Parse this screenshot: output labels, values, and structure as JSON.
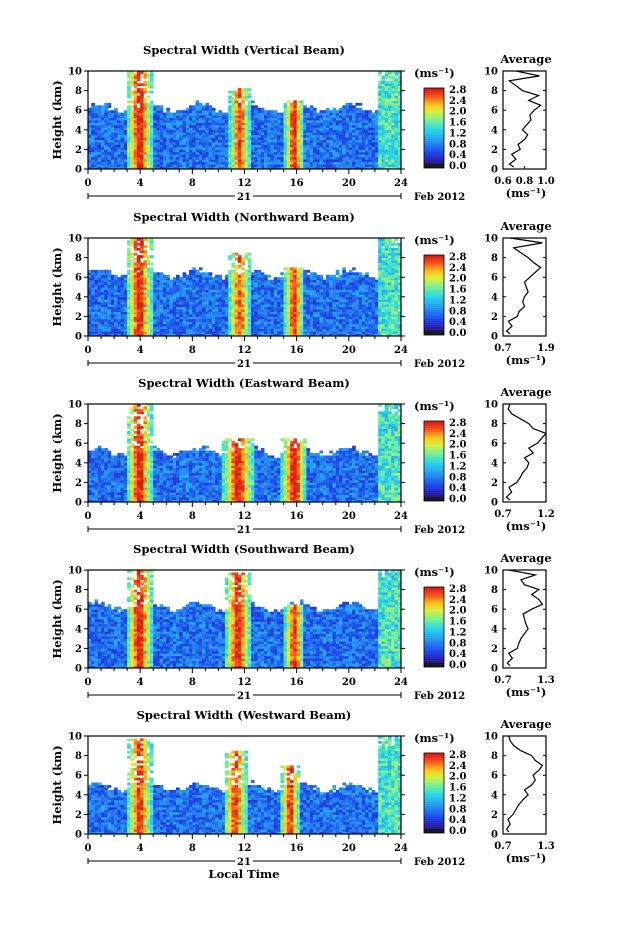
{
  "figure": {
    "colorbar_unit": "(ms⁻¹)",
    "colorbar_ticks": [
      "0.0",
      "0.4",
      "0.8",
      "1.2",
      "1.6",
      "2.0",
      "2.4",
      "2.8"
    ],
    "avg_title": "Average",
    "avg_xlabel": "(ms⁻¹)",
    "date_day_label": "21",
    "date_month_label": "Feb 2012",
    "bottom_xlabel": "Local Time"
  },
  "chart_data": [
    {
      "type": "heatmap",
      "title": "Spectral Width (Vertical Beam)",
      "xlabel": "Local Time",
      "ylabel": "Height (km)",
      "x_ticks": [
        0,
        4,
        8,
        12,
        16,
        20,
        24
      ],
      "y_ticks": [
        0,
        2,
        4,
        6,
        8,
        10
      ],
      "xlim": [
        0,
        24
      ],
      "ylim": [
        0,
        10
      ],
      "colorbar": {
        "label": "(ms⁻¹)",
        "range": [
          0.0,
          2.8
        ]
      },
      "average_profile": {
        "xlim": [
          0.6,
          1.0
        ],
        "x_ticks": [
          "0.6",
          "0.8",
          "1.0"
        ],
        "height": [
          0.2,
          0.5,
          1.0,
          1.5,
          2.0,
          2.5,
          3.0,
          3.5,
          4.0,
          4.5,
          5.0,
          5.5,
          6.0,
          6.5,
          7.0,
          7.5,
          8.0,
          8.5,
          9.0,
          9.5,
          10.0
        ],
        "value": [
          0.7,
          0.66,
          0.72,
          0.68,
          0.76,
          0.74,
          0.8,
          0.83,
          0.78,
          0.82,
          0.86,
          0.85,
          0.89,
          0.95,
          0.84,
          0.93,
          0.78,
          0.72,
          0.66,
          0.94,
          0.72
        ]
      }
    },
    {
      "type": "heatmap",
      "title": "Spectral Width (Northward Beam)",
      "xlabel": "Local Time",
      "ylabel": "Height (km)",
      "x_ticks": [
        0,
        4,
        8,
        12,
        16,
        20,
        24
      ],
      "y_ticks": [
        0,
        2,
        4,
        6,
        8,
        10
      ],
      "xlim": [
        0,
        24
      ],
      "ylim": [
        0,
        10
      ],
      "colorbar": {
        "label": "(ms⁻¹)",
        "range": [
          0.0,
          2.8
        ]
      },
      "average_profile": {
        "xlim": [
          0.7,
          1.9
        ],
        "x_ticks": [
          "0.7",
          "1.9"
        ],
        "height": [
          0.2,
          0.5,
          1.0,
          1.5,
          2.0,
          2.5,
          3.0,
          3.5,
          4.0,
          4.5,
          5.0,
          5.5,
          6.0,
          6.5,
          7.0,
          7.5,
          8.0,
          8.5,
          9.0,
          9.5,
          10.0
        ],
        "value": [
          0.9,
          0.8,
          0.95,
          0.85,
          1.1,
          1.15,
          1.3,
          1.25,
          1.3,
          1.4,
          1.35,
          1.3,
          1.45,
          1.6,
          1.75,
          1.55,
          1.4,
          1.2,
          1.0,
          1.8,
          0.9
        ]
      }
    },
    {
      "type": "heatmap",
      "title": "Spectral Width (Eastward Beam)",
      "xlabel": "Local Time",
      "ylabel": "Height (km)",
      "x_ticks": [
        0,
        4,
        8,
        12,
        16,
        20,
        24
      ],
      "y_ticks": [
        0,
        2,
        4,
        6,
        8,
        10
      ],
      "xlim": [
        0,
        24
      ],
      "ylim": [
        0,
        10
      ],
      "colorbar": {
        "label": "(ms⁻¹)",
        "range": [
          0.0,
          2.8
        ]
      },
      "average_profile": {
        "xlim": [
          0.7,
          1.2
        ],
        "x_ticks": [
          "0.7",
          "1.2"
        ],
        "height": [
          0.2,
          0.5,
          1.0,
          1.5,
          2.0,
          2.5,
          3.0,
          3.5,
          4.0,
          4.5,
          5.0,
          5.5,
          6.0,
          6.5,
          7.0,
          7.5,
          8.0,
          8.5,
          9.0,
          9.5,
          10.0
        ],
        "value": [
          0.78,
          0.74,
          0.8,
          0.77,
          0.86,
          0.9,
          0.93,
          0.98,
          1.0,
          0.95,
          1.05,
          1.0,
          1.1,
          1.15,
          1.2,
          1.05,
          1.0,
          0.9,
          0.8,
          0.76,
          0.78
        ]
      }
    },
    {
      "type": "heatmap",
      "title": "Spectral Width (Southward Beam)",
      "xlabel": "Local Time",
      "ylabel": "Height (km)",
      "x_ticks": [
        0,
        4,
        8,
        12,
        16,
        20,
        24
      ],
      "y_ticks": [
        0,
        2,
        4,
        6,
        8,
        10
      ],
      "xlim": [
        0,
        24
      ],
      "ylim": [
        0,
        10
      ],
      "colorbar": {
        "label": "(ms⁻¹)",
        "range": [
          0.0,
          2.8
        ]
      },
      "average_profile": {
        "xlim": [
          0.7,
          1.3
        ],
        "x_ticks": [
          "0.7",
          "1.3"
        ],
        "height": [
          0.2,
          0.5,
          1.0,
          1.5,
          2.0,
          2.5,
          3.0,
          3.5,
          4.0,
          4.5,
          5.0,
          5.5,
          6.0,
          6.5,
          7.0,
          7.5,
          8.0,
          8.5,
          9.0,
          9.5,
          10.0
        ],
        "value": [
          0.8,
          0.76,
          0.83,
          0.78,
          0.9,
          0.92,
          0.95,
          1.0,
          1.05,
          1.02,
          1.0,
          0.98,
          1.1,
          1.25,
          1.2,
          1.1,
          1.2,
          1.0,
          0.95,
          1.15,
          0.78
        ]
      }
    },
    {
      "type": "heatmap",
      "title": "Spectral Width (Westward Beam)",
      "xlabel": "Local Time",
      "ylabel": "Height (km)",
      "x_ticks": [
        0,
        4,
        8,
        12,
        16,
        20,
        24
      ],
      "y_ticks": [
        0,
        2,
        4,
        6,
        8,
        10
      ],
      "xlim": [
        0,
        24
      ],
      "ylim": [
        0,
        10
      ],
      "colorbar": {
        "label": "(ms⁻¹)",
        "range": [
          0.0,
          2.8
        ]
      },
      "average_profile": {
        "xlim": [
          0.7,
          1.3
        ],
        "x_ticks": [
          "0.7",
          "1.3"
        ],
        "height": [
          0.2,
          0.5,
          1.0,
          1.5,
          2.0,
          2.5,
          3.0,
          3.5,
          4.0,
          4.5,
          5.0,
          5.5,
          6.0,
          6.5,
          7.0,
          7.5,
          8.0,
          8.5,
          9.0,
          9.5,
          10.0
        ],
        "value": [
          0.78,
          0.75,
          0.8,
          0.77,
          0.84,
          0.88,
          0.92,
          0.98,
          1.05,
          1.0,
          1.1,
          1.15,
          1.12,
          1.2,
          1.25,
          1.15,
          1.1,
          0.95,
          0.85,
          0.8,
          0.78
        ]
      }
    }
  ]
}
